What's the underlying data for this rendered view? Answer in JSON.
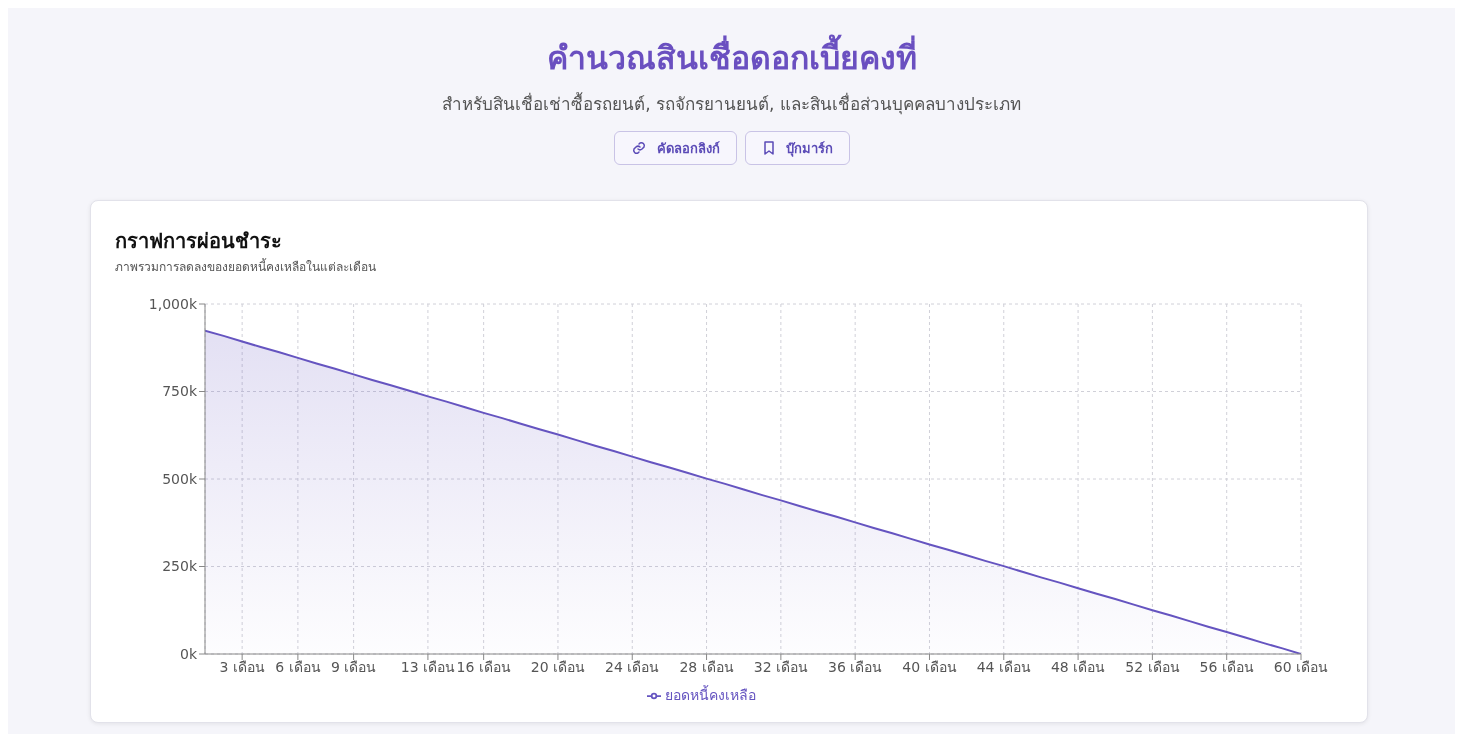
{
  "chart_data": {
    "type": "area",
    "title": "กราฟการผ่อนชำระ",
    "subtitle": "ภาพรวมการลดลงของยอดหนี้คงเหลือในแต่ละเดือน",
    "annotations": [
      "คำนวณสินเชื่อดอกเบี้ยคงที่",
      "สำหรับสินเชื่อเช่าซื้อรถยนต์, รถจักรยานยนต์, และสินเชื่อส่วนบุคคลบางประเภท",
      "คัดลอกลิงก์",
      "บุ๊กมาร์ก"
    ],
    "categories": [
      null,
      null,
      "3 เดือน",
      null,
      null,
      "6 เดือน",
      null,
      null,
      "9 เดือน",
      null,
      null,
      null,
      "13 เดือน",
      null,
      null,
      "16 เดือน",
      null,
      null,
      null,
      "20 เดือน",
      null,
      null,
      null,
      "24 เดือน",
      null,
      null,
      null,
      "28 เดือน",
      null,
      null,
      null,
      "32 เดือน",
      null,
      null,
      null,
      "36 เดือน",
      null,
      null,
      null,
      "40 เดือน",
      null,
      null,
      null,
      "44 เดือน",
      null,
      null,
      null,
      "48 เดือน",
      null,
      null,
      null,
      "52 เดือน",
      null,
      null,
      null,
      "56 เดือน",
      null,
      null,
      null,
      "60 เดือน"
    ],
    "series": [
      {
        "name": "ยอดหนี้คงเหลือ",
        "color": "#6554c0",
        "values": [
          924000,
          909000,
          893000,
          877000,
          862000,
          846000,
          830000,
          815000,
          799000,
          783000,
          768000,
          752000,
          736000,
          721000,
          705000,
          689000,
          674000,
          658000,
          642000,
          627000,
          611000,
          595000,
          580000,
          564000,
          548000,
          533000,
          517000,
          501000,
          486000,
          470000,
          454000,
          439000,
          423000,
          407000,
          392000,
          376000,
          360000,
          345000,
          329000,
          313000,
          298000,
          282000,
          266000,
          251000,
          235000,
          219000,
          204000,
          188000,
          172000,
          157000,
          141000,
          125000,
          110000,
          94000,
          78000,
          63000,
          47000,
          31000,
          16000,
          0
        ]
      }
    ],
    "ylim": [
      0,
      1000000
    ],
    "yticks": [
      {
        "value": 0,
        "label": "0k"
      },
      {
        "value": 250000,
        "label": "250k"
      },
      {
        "value": 500000,
        "label": "500k"
      },
      {
        "value": 750000,
        "label": "750k"
      },
      {
        "value": 1000000,
        "label": "1,000k"
      }
    ],
    "grid": true,
    "legend": "bottom"
  }
}
